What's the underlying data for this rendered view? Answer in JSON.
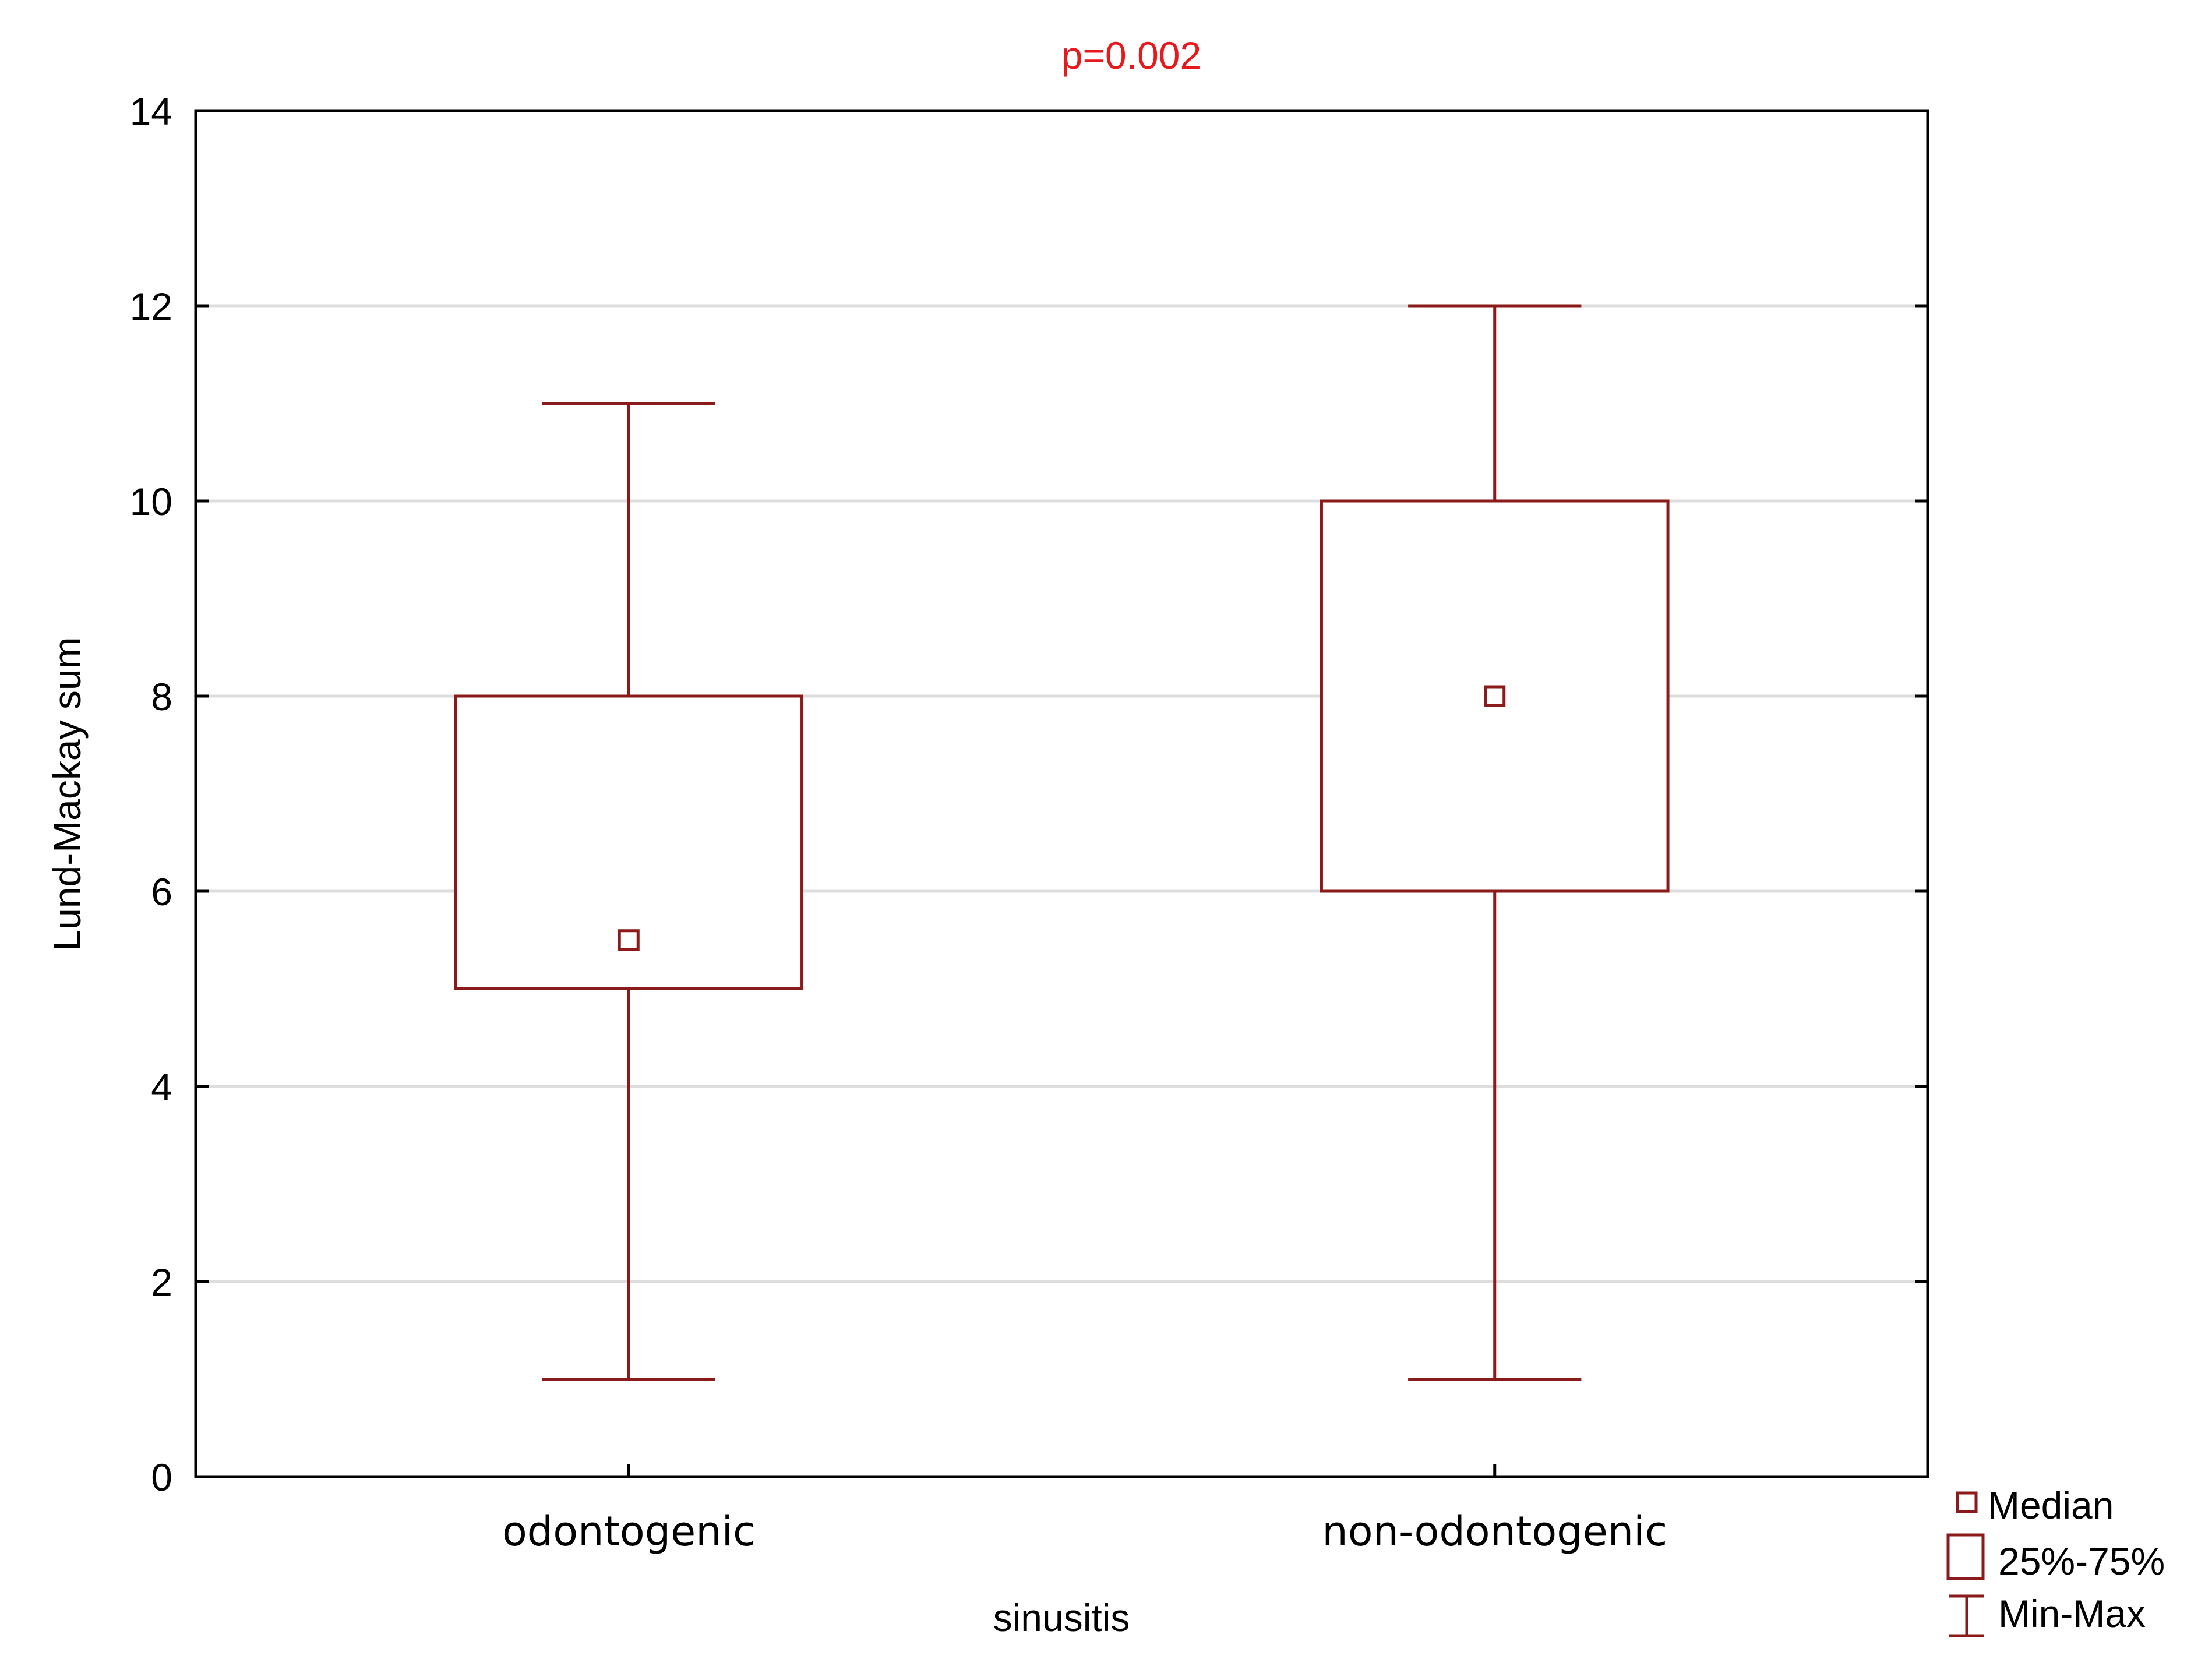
{
  "chart_data": {
    "type": "box",
    "title": "p=0.002",
    "xlabel": "sinusitis",
    "ylabel": "Lund-Mackay sum",
    "ylim": [
      0,
      14
    ],
    "yticks": [
      0,
      2,
      4,
      6,
      8,
      10,
      12,
      14
    ],
    "grid": true,
    "categories": [
      "odontogenic",
      "non-odontogenic"
    ],
    "boxes": [
      {
        "category": "odontogenic",
        "min": 1,
        "q1": 5,
        "median": 5.5,
        "q3": 8,
        "max": 11
      },
      {
        "category": "non-odontogenic",
        "min": 1,
        "q1": 6,
        "median": 8,
        "q3": 10,
        "max": 12
      }
    ],
    "legend": {
      "position": "bottom-right",
      "entries": [
        "Median",
        "25%-75%",
        "Min-Max"
      ]
    },
    "colors": {
      "series": "#8b1a1a",
      "title": "#e8191c",
      "grid": "#dddddd",
      "axis": "#000000"
    }
  }
}
